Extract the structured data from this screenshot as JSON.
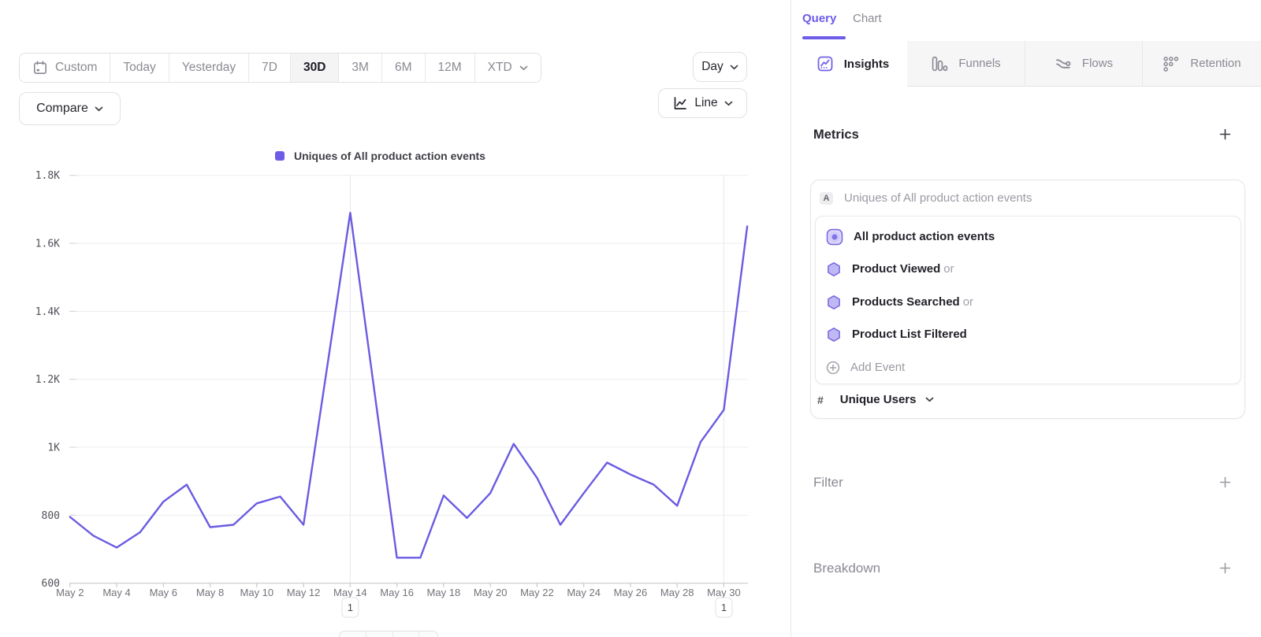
{
  "toolbar": {
    "ranges": [
      {
        "label": "Custom"
      },
      {
        "label": "Today"
      },
      {
        "label": "Yesterday"
      },
      {
        "label": "7D"
      },
      {
        "label": "30D"
      },
      {
        "label": "3M"
      },
      {
        "label": "6M"
      },
      {
        "label": "12M"
      },
      {
        "label": "XTD"
      }
    ],
    "active_range": "30D",
    "granularity_label": "Day",
    "compare_label": "Compare",
    "chart_type_label": "Line"
  },
  "legend": {
    "series_label": "Uniques of All product action events"
  },
  "chart_data": {
    "type": "line",
    "title": "Uniques of All product action events",
    "series_name": "Uniques of All product action events",
    "x": [
      "May 2",
      "May 3",
      "May 4",
      "May 5",
      "May 6",
      "May 7",
      "May 8",
      "May 9",
      "May 10",
      "May 11",
      "May 12",
      "May 13",
      "May 14",
      "May 15",
      "May 16",
      "May 17",
      "May 18",
      "May 19",
      "May 20",
      "May 21",
      "May 22",
      "May 23",
      "May 24",
      "May 25",
      "May 26",
      "May 27",
      "May 28",
      "May 29",
      "May 30",
      "May 31"
    ],
    "values": [
      795,
      740,
      705,
      750,
      840,
      890,
      765,
      772,
      835,
      855,
      772,
      1230,
      1690,
      1183,
      675,
      675,
      858,
      792,
      865,
      1010,
      910,
      772,
      865,
      955,
      920,
      890,
      828,
      1015,
      1110,
      1650
    ],
    "ylim": [
      600,
      1800
    ],
    "yticks": [
      {
        "value": 600,
        "label": "600"
      },
      {
        "value": 800,
        "label": "800"
      },
      {
        "value": 1000,
        "label": "1K"
      },
      {
        "value": 1200,
        "label": "1.2K"
      },
      {
        "value": 1400,
        "label": "1.4K"
      },
      {
        "value": 1600,
        "label": "1.6K"
      },
      {
        "value": 1800,
        "label": "1.8K"
      }
    ],
    "x_label_every": 2,
    "grid": true,
    "legend_position": "top-center",
    "line_color": "#6A5BE2",
    "annotations": [
      {
        "x": "May 14",
        "count": "1"
      },
      {
        "x": "May 30",
        "count": "1"
      }
    ]
  },
  "query_panel": {
    "tabs": [
      {
        "label": "Query"
      },
      {
        "label": "Chart"
      }
    ],
    "active_tab": "Query",
    "report_tabs": [
      {
        "label": "Insights"
      },
      {
        "label": "Funnels"
      },
      {
        "label": "Flows"
      },
      {
        "label": "Retention"
      }
    ],
    "active_report_tab": "Insights",
    "metrics": {
      "title": "Metrics",
      "group_badge": "A",
      "group_label": "Uniques of All product action events",
      "events": [
        {
          "name": "All product action events",
          "suffix": ""
        },
        {
          "name": "Product Viewed",
          "suffix": "or"
        },
        {
          "name": "Products Searched",
          "suffix": "or"
        },
        {
          "name": "Product List Filtered",
          "suffix": ""
        }
      ],
      "add_event_label": "Add Event",
      "measure": {
        "prefix": "#",
        "label": "Unique Users"
      }
    },
    "filter": {
      "title": "Filter"
    },
    "breakdown": {
      "title": "Breakdown"
    }
  },
  "colors": {
    "accent": "#6C5CE7",
    "line": "#6A5BE2",
    "hexagon_fill": "#C0B8F3",
    "hexagon_stroke": "#7566E4",
    "inactive_tab_bg": "#F6F6F7",
    "border": "#E3E3E7",
    "gray_text": "#8A8A93"
  }
}
